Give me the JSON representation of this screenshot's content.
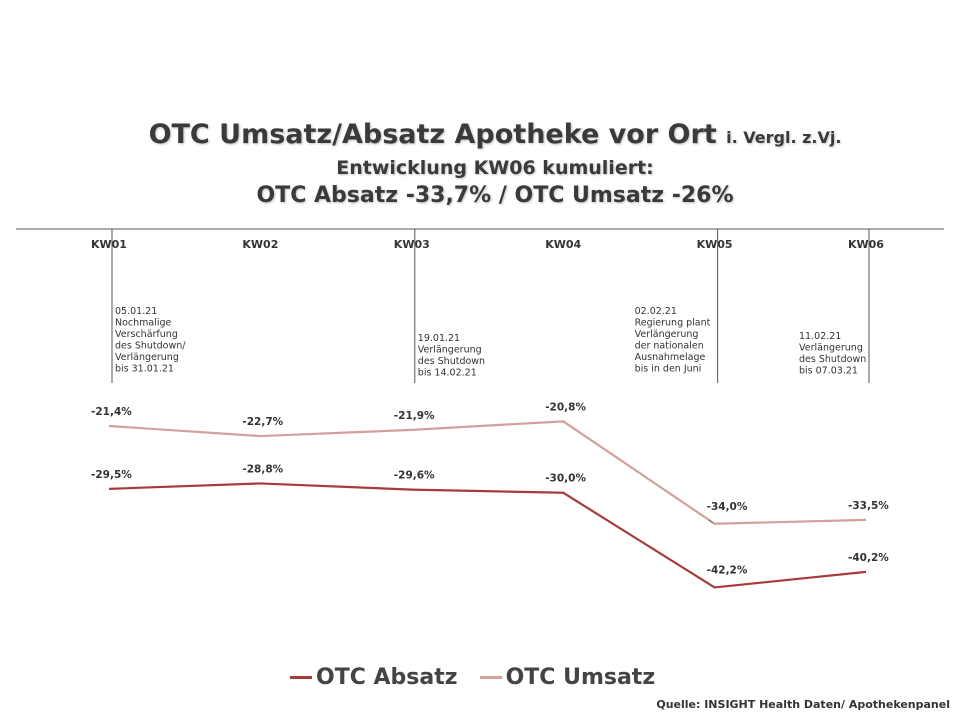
{
  "title": {
    "line1_main": "OTC Umsatz/Absatz Apotheke vor Ort",
    "line1_small": "i. Vergl. z.Vj.",
    "line2": "Entwicklung KW06 kumuliert:",
    "line3": "OTC Absatz -33,7% / OTC Umsatz -26%"
  },
  "source": "Quelle: INSIGHT Health Daten/ Apothekenpanel",
  "colors": {
    "absatz": "#a93a3a",
    "umsatz": "#d4a09c",
    "axis": "#555555"
  },
  "chart_data": {
    "type": "line",
    "categories": [
      "KW01",
      "KW02",
      "KW03",
      "KW04",
      "KW05",
      "KW06"
    ],
    "series": [
      {
        "name": "OTC Absatz",
        "values": [
          -29.5,
          -28.8,
          -29.6,
          -30.0,
          -42.2,
          -40.2
        ],
        "labels": [
          "-29,5%",
          "-28,8%",
          "-29,6%",
          "-30,0%",
          "-42,2%",
          "-40,2%"
        ]
      },
      {
        "name": "OTC Umsatz",
        "values": [
          -21.4,
          -22.7,
          -21.9,
          -20.8,
          -34.0,
          -33.5
        ],
        "labels": [
          "-21,4%",
          "-22,7%",
          "-21,9%",
          "-20,8%",
          "-34,0%",
          "-33,5%"
        ]
      }
    ],
    "annotations": [
      {
        "category": "KW01",
        "lines": [
          "05.01.21",
          "Nochmalige",
          "Verschärfung",
          "des Shutdown/",
          "Verlängerung",
          "bis 31.01.21"
        ]
      },
      {
        "category": "KW03",
        "lines": [
          "19.01.21",
          "Verlängerung",
          "des Shutdown",
          "bis 14.02.21"
        ]
      },
      {
        "category": "KW05",
        "lines": [
          "02.02.21",
          "Regierung plant",
          "Verlängerung",
          "der nationalen",
          "Ausnahmelage",
          "bis in den Juni"
        ]
      },
      {
        "category": "KW06",
        "lines": [
          "11.02.21",
          "Verlängerung",
          "des Shutdown",
          "bis 07.03.21"
        ]
      }
    ],
    "legend_position": "bottom",
    "grid": false
  }
}
